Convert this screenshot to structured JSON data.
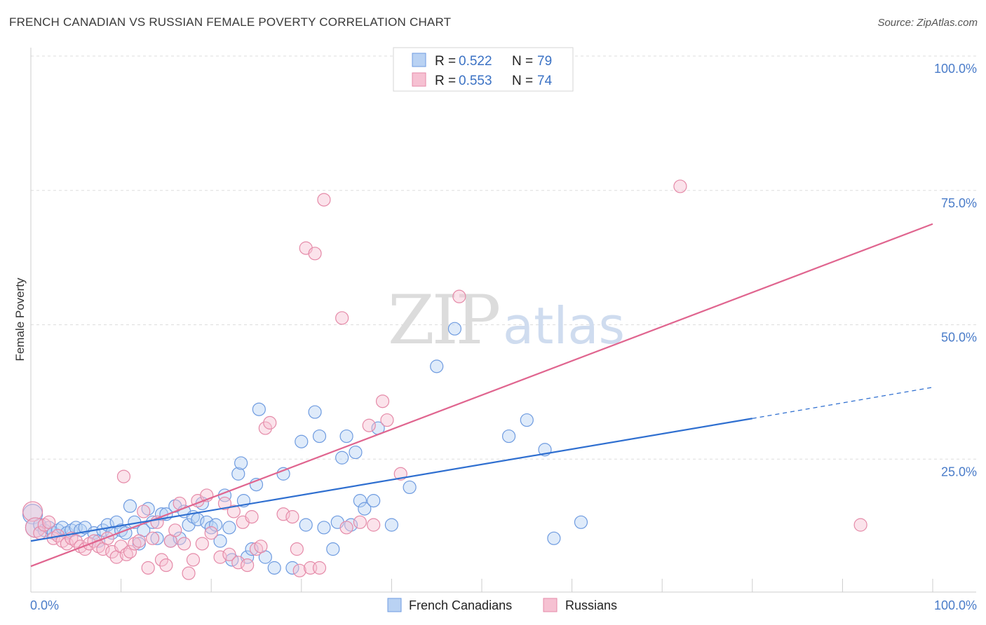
{
  "title": "FRENCH CANADIAN VS RUSSIAN FEMALE POVERTY CORRELATION CHART",
  "source": "Source: ZipAtlas.com",
  "watermark": {
    "zip": "ZIP",
    "atlas": "atlas"
  },
  "colors": {
    "blue": "#2f6fd0",
    "pink": "#e0658f",
    "blue_fill": "#b9d2f3",
    "pink_fill": "#f6c1d2",
    "tick": "#4a7cc9"
  },
  "legend_box": {
    "rows": [
      {
        "r_label": "R = ",
        "r_value": "0.522",
        "n_label": "N = ",
        "n_value": "79"
      },
      {
        "r_label": "R = ",
        "r_value": "0.553",
        "n_label": "N = ",
        "n_value": "74"
      }
    ]
  },
  "bottom_legend": [
    "French Canadians",
    "Russians"
  ],
  "chart_data": {
    "type": "scatter",
    "title": "FRENCH CANADIAN VS RUSSIAN FEMALE POVERTY CORRELATION CHART",
    "xlabel": "",
    "ylabel": "Female Poverty",
    "xlim": [
      0,
      100
    ],
    "ylim": [
      0,
      100
    ],
    "x_tick_labels": [
      "0.0%",
      "100.0%"
    ],
    "y_tick_labels": [
      "100.0%",
      "75.0%",
      "50.0%",
      "25.0%"
    ],
    "y_ticks": [
      100,
      75,
      50,
      25
    ],
    "grid": true,
    "legend_position": "top-center",
    "series": [
      {
        "name": "French Canadians",
        "color": "#2f6fd0",
        "R": 0.522,
        "N": 79,
        "trend": {
          "x": [
            0,
            80
          ],
          "y": [
            9.5,
            32.3
          ],
          "dashed_to": [
            100,
            38.1
          ]
        },
        "points": [
          [
            0.2,
            14.5
          ],
          [
            0.5,
            12.0
          ],
          [
            1.0,
            12.5
          ],
          [
            1.5,
            11.5
          ],
          [
            2.0,
            12.0
          ],
          [
            2.5,
            11.0
          ],
          [
            3.0,
            11.5
          ],
          [
            3.5,
            12.0
          ],
          [
            4.0,
            11.0
          ],
          [
            4.5,
            11.5
          ],
          [
            5.0,
            12.0
          ],
          [
            5.5,
            11.5
          ],
          [
            6.0,
            12.0
          ],
          [
            7.0,
            11.0
          ],
          [
            7.5,
            9.5
          ],
          [
            8.0,
            11.5
          ],
          [
            8.5,
            12.5
          ],
          [
            9.0,
            11.0
          ],
          [
            9.5,
            13.0
          ],
          [
            10.0,
            11.5
          ],
          [
            10.5,
            11.0
          ],
          [
            11.0,
            16.0
          ],
          [
            11.5,
            13.0
          ],
          [
            12.0,
            9.0
          ],
          [
            12.5,
            11.5
          ],
          [
            13.0,
            15.5
          ],
          [
            13.5,
            13.0
          ],
          [
            14.0,
            10.0
          ],
          [
            14.5,
            14.5
          ],
          [
            15.0,
            14.5
          ],
          [
            15.5,
            9.5
          ],
          [
            16.0,
            16.0
          ],
          [
            16.5,
            10.0
          ],
          [
            17.0,
            15.0
          ],
          [
            17.5,
            12.5
          ],
          [
            18.0,
            14.0
          ],
          [
            18.5,
            13.5
          ],
          [
            19.0,
            16.5
          ],
          [
            19.5,
            13.0
          ],
          [
            20.0,
            12.0
          ],
          [
            20.5,
            12.5
          ],
          [
            21.0,
            9.5
          ],
          [
            21.5,
            18.0
          ],
          [
            22.0,
            12.0
          ],
          [
            22.3,
            6.0
          ],
          [
            23.0,
            22.0
          ],
          [
            23.3,
            24.0
          ],
          [
            23.6,
            17.0
          ],
          [
            24.0,
            6.5
          ],
          [
            24.5,
            8.0
          ],
          [
            25.0,
            20.0
          ],
          [
            25.3,
            34.0
          ],
          [
            26.0,
            6.5
          ],
          [
            27.0,
            4.5
          ],
          [
            28.0,
            22.0
          ],
          [
            29.0,
            4.5
          ],
          [
            30.0,
            28.0
          ],
          [
            30.5,
            12.5
          ],
          [
            31.5,
            33.5
          ],
          [
            32.0,
            29.0
          ],
          [
            32.5,
            12.0
          ],
          [
            33.5,
            8.0
          ],
          [
            34.0,
            13.0
          ],
          [
            34.5,
            25.0
          ],
          [
            35.0,
            29.0
          ],
          [
            35.5,
            12.5
          ],
          [
            36.0,
            26.0
          ],
          [
            36.5,
            17.0
          ],
          [
            37.0,
            15.5
          ],
          [
            38.0,
            17.0
          ],
          [
            38.5,
            30.5
          ],
          [
            40.0,
            12.5
          ],
          [
            42.0,
            19.5
          ],
          [
            45.0,
            42.0
          ],
          [
            47.0,
            49.0
          ],
          [
            53.0,
            29.0
          ],
          [
            55.0,
            32.0
          ],
          [
            57.0,
            26.5
          ],
          [
            58.0,
            10.0
          ],
          [
            61.0,
            13.0
          ]
        ]
      },
      {
        "name": "Russians",
        "color": "#e0658f",
        "R": 0.553,
        "N": 74,
        "trend": {
          "x": [
            0,
            100
          ],
          "y": [
            4.8,
            68.5
          ]
        },
        "points": [
          [
            0.2,
            15.0
          ],
          [
            0.5,
            12.0
          ],
          [
            1.0,
            11.0
          ],
          [
            1.5,
            12.5
          ],
          [
            2.0,
            13.0
          ],
          [
            2.5,
            10.0
          ],
          [
            3.0,
            10.5
          ],
          [
            3.5,
            9.5
          ],
          [
            4.0,
            9.0
          ],
          [
            4.5,
            10.0
          ],
          [
            5.0,
            9.5
          ],
          [
            5.5,
            8.5
          ],
          [
            6.0,
            8.0
          ],
          [
            6.5,
            9.0
          ],
          [
            7.0,
            9.5
          ],
          [
            7.5,
            8.5
          ],
          [
            8.0,
            8.0
          ],
          [
            8.5,
            10.0
          ],
          [
            9.0,
            7.5
          ],
          [
            9.5,
            6.5
          ],
          [
            10.0,
            8.5
          ],
          [
            10.3,
            21.5
          ],
          [
            10.6,
            7.0
          ],
          [
            11.0,
            7.5
          ],
          [
            11.5,
            9.0
          ],
          [
            12.0,
            9.5
          ],
          [
            12.5,
            15.0
          ],
          [
            13.0,
            4.5
          ],
          [
            13.5,
            10.0
          ],
          [
            14.0,
            13.0
          ],
          [
            14.5,
            6.0
          ],
          [
            15.0,
            5.0
          ],
          [
            15.5,
            9.5
          ],
          [
            16.0,
            11.5
          ],
          [
            16.5,
            16.5
          ],
          [
            17.0,
            9.0
          ],
          [
            17.5,
            3.5
          ],
          [
            18.0,
            6.0
          ],
          [
            18.5,
            17.0
          ],
          [
            19.0,
            9.0
          ],
          [
            19.5,
            18.0
          ],
          [
            20.0,
            11.0
          ],
          [
            21.0,
            6.5
          ],
          [
            21.5,
            16.5
          ],
          [
            22.0,
            7.0
          ],
          [
            22.5,
            15.0
          ],
          [
            23.0,
            5.5
          ],
          [
            23.5,
            13.0
          ],
          [
            24.0,
            5.0
          ],
          [
            24.5,
            14.0
          ],
          [
            25.0,
            8.0
          ],
          [
            25.5,
            8.5
          ],
          [
            26.0,
            30.5
          ],
          [
            26.5,
            31.5
          ],
          [
            28.0,
            14.5
          ],
          [
            29.0,
            14.0
          ],
          [
            29.5,
            8.0
          ],
          [
            29.8,
            4.0
          ],
          [
            30.5,
            64.0
          ],
          [
            31.0,
            4.5
          ],
          [
            31.5,
            63.0
          ],
          [
            32.0,
            4.5
          ],
          [
            32.5,
            73.0
          ],
          [
            34.5,
            51.0
          ],
          [
            35.0,
            12.0
          ],
          [
            36.5,
            13.0
          ],
          [
            37.5,
            31.0
          ],
          [
            38.0,
            12.5
          ],
          [
            39.0,
            35.5
          ],
          [
            39.5,
            32.0
          ],
          [
            41.0,
            22.0
          ],
          [
            47.5,
            55.0
          ],
          [
            72.0,
            75.5
          ],
          [
            92.0,
            12.5
          ]
        ]
      }
    ]
  }
}
